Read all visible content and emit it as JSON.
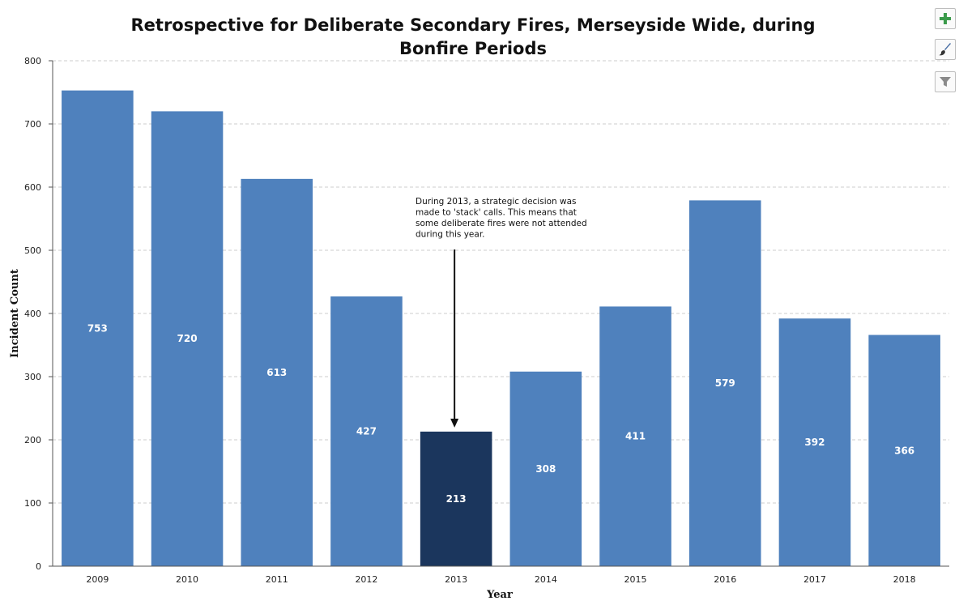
{
  "toolbar": {
    "icons": [
      "plus-icon",
      "brush-icon",
      "filter-icon"
    ],
    "plus_color": "#3a9a4a"
  },
  "chart_data": {
    "type": "bar",
    "title": "Retrospective for Deliberate Secondary Fires, Merseyside Wide, during Bonfire Periods",
    "title_lines": [
      "Retrospective for Deliberate Secondary Fires, Merseyside Wide, during",
      "Bonfire Periods"
    ],
    "xlabel": "Year",
    "ylabel": "Incident Count",
    "categories": [
      "2009",
      "2010",
      "2011",
      "2012",
      "2013",
      "2014",
      "2015",
      "2016",
      "2017",
      "2018"
    ],
    "values": [
      753,
      720,
      613,
      427,
      213,
      308,
      411,
      579,
      392,
      366
    ],
    "data_labels": [
      "753",
      "720",
      "613",
      "427",
      "213",
      "308",
      "411",
      "579",
      "392",
      "366"
    ],
    "ylim": [
      0,
      800
    ],
    "yticks": [
      0,
      100,
      200,
      300,
      400,
      500,
      600,
      700,
      800
    ],
    "grid": "horizontal dashed",
    "colors": {
      "bar": "#4f81bd",
      "highlight": "#1b365d",
      "label": "#ffffff"
    },
    "highlight_category": "2013",
    "annotation": {
      "category": "2013",
      "lines": [
        "During 2013, a strategic decision was",
        "made to 'stack' calls.  This means that",
        "some deliberate fires were not attended",
        "during this year."
      ]
    }
  }
}
